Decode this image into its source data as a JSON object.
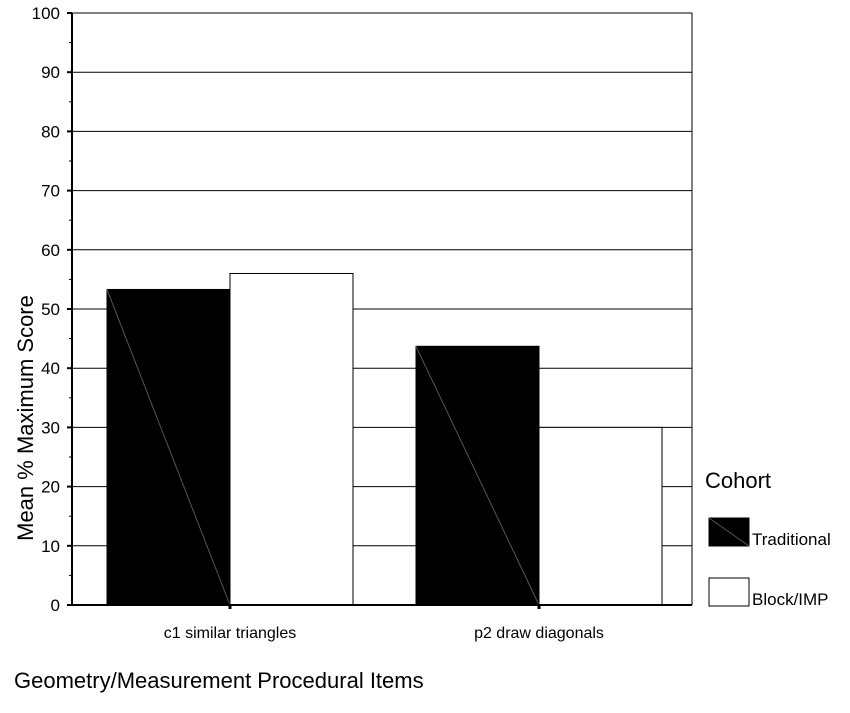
{
  "chart_data": {
    "type": "bar",
    "title": "",
    "xlabel": "Geometry/Measurement Procedural Items",
    "ylabel": "Mean % Maximum Score",
    "ylim": [
      0,
      100
    ],
    "yticks": [
      0,
      10,
      20,
      30,
      40,
      50,
      60,
      70,
      80,
      90,
      100
    ],
    "grid": true,
    "categories": [
      "c1 similar triangles",
      "p2 draw diagonals"
    ],
    "series": [
      {
        "name": "Traditional",
        "values": [
          53.3,
          43.7
        ],
        "color": "#000000"
      },
      {
        "name": "Block/IMP",
        "values": [
          56.0,
          30.0
        ],
        "color": "#ffffff"
      }
    ],
    "legend": {
      "title": "Cohort",
      "placement": "right"
    }
  }
}
